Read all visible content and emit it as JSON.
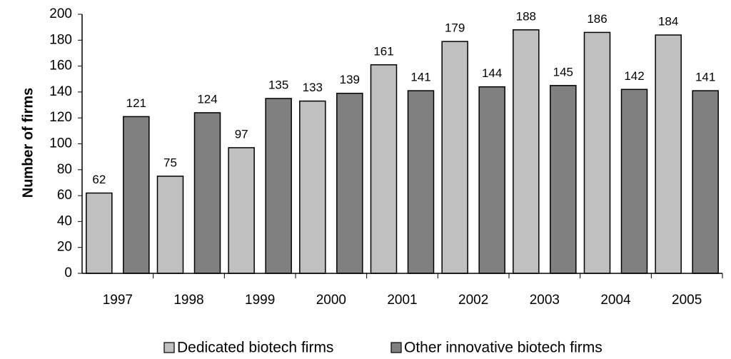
{
  "chart_data": {
    "type": "bar",
    "y_label": "Number of firms",
    "categories": [
      "1997",
      "1998",
      "1999",
      "2000",
      "2001",
      "2002",
      "2003",
      "2004",
      "2005"
    ],
    "series": [
      {
        "name": "Dedicated biotech firms",
        "color": "#c0c0c0",
        "values": [
          62,
          75,
          97,
          133,
          161,
          179,
          188,
          186,
          184
        ]
      },
      {
        "name": "Other innovative biotech firms",
        "color": "#808080",
        "values": [
          121,
          124,
          135,
          139,
          141,
          144,
          145,
          142,
          141
        ]
      }
    ],
    "ylim": [
      0,
      200
    ],
    "yticks": [
      0,
      20,
      40,
      60,
      80,
      100,
      120,
      140,
      160,
      180,
      200
    ],
    "grid": false,
    "legend": "bottom"
  }
}
